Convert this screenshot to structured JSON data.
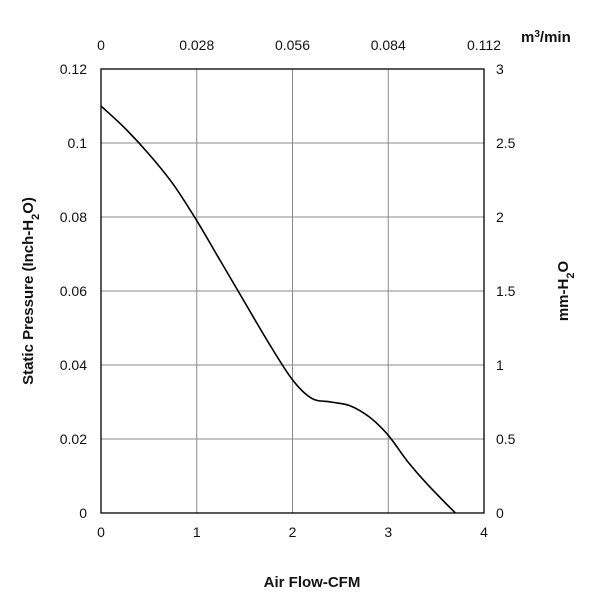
{
  "chart_data": {
    "type": "line",
    "title": "",
    "xlabel": "Air Flow-CFM",
    "ylabel": "Static Pressure (Inch-H2O)",
    "y2label": "mm-H2O",
    "x2label": "m3/min",
    "xlim": [
      0,
      4
    ],
    "ylim": [
      0,
      0.12
    ],
    "x_ticks": [
      0,
      1,
      2,
      3,
      4
    ],
    "y_ticks": [
      0,
      0.02,
      0.04,
      0.06,
      0.08,
      0.1,
      0.12
    ],
    "x_tick_labels": [
      "0",
      "1",
      "2",
      "3",
      "4"
    ],
    "y_tick_labels": [
      "0",
      "0.02",
      "0.04",
      "0.06",
      "0.08",
      "0.1",
      "0.12"
    ],
    "x2_tick_labels": [
      "0",
      "0.028",
      "0.056",
      "0.084",
      "0.112"
    ],
    "y2_tick_labels": [
      "0",
      "0.5",
      "1",
      "1.5",
      "2",
      "2.5",
      "3"
    ],
    "grid": true,
    "series": [
      {
        "x": [
          0,
          0.25,
          0.5,
          0.75,
          1.0,
          1.25,
          1.5,
          1.75,
          2.0,
          2.2,
          2.4,
          2.6,
          2.8,
          3.0,
          3.2,
          3.4,
          3.7
        ],
        "y": [
          0.11,
          0.104,
          0.097,
          0.089,
          0.079,
          0.068,
          0.057,
          0.046,
          0.036,
          0.031,
          0.03,
          0.029,
          0.026,
          0.021,
          0.014,
          0.008,
          0
        ]
      }
    ]
  }
}
